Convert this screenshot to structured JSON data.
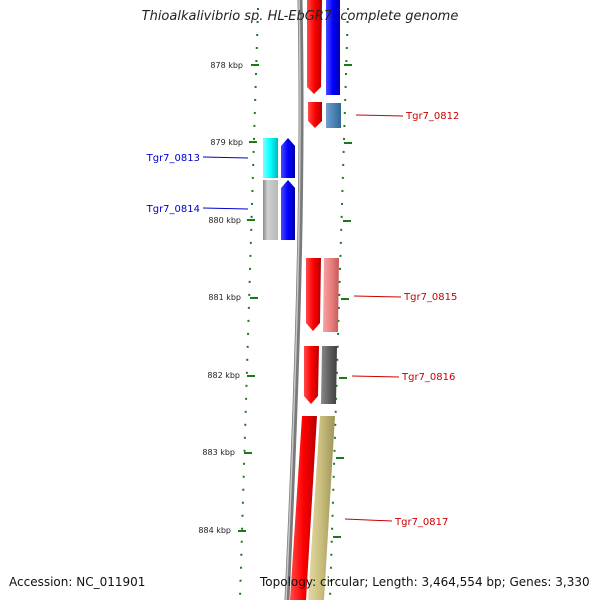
{
  "title": "Thioalkalivibrio sp. HL-EbGR7, complete genome",
  "accession": "Accession: NC_011901",
  "summary": "Topology: circular; Length: 3,464,554 bp; Genes: 3,330",
  "scale_labels": [
    "878 kbp",
    "879 kbp",
    "880 kbp",
    "881 kbp",
    "882 kbp",
    "883 kbp",
    "884 kbp"
  ],
  "gene_labels": {
    "g0812": "Tgr7_0812",
    "g0813": "Tgr7_0813",
    "g0814": "Tgr7_0814",
    "g0815": "Tgr7_0815",
    "g0816": "Tgr7_0816",
    "g0817": "Tgr7_0817"
  },
  "colors": {
    "label_forward": "#0000cc",
    "label_reverse": "#cc0000",
    "tick": "#1a7a1a",
    "cds": "#ff0000",
    "backbone": "#808080"
  }
}
